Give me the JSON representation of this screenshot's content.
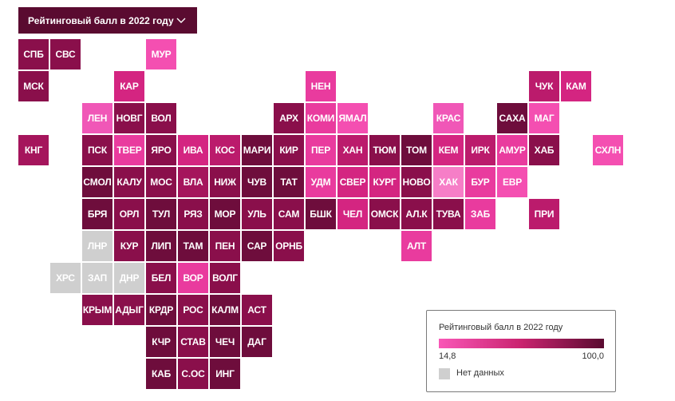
{
  "dropdown": {
    "label": "Рейтинговый балл в 2022 году"
  },
  "legend": {
    "title": "Рейтинговый балл в 2022 году",
    "min": "14,8",
    "max": "100,0",
    "no_data": "Нет данных",
    "colors": {
      "low": "#f957b7",
      "mid": "#c9236f",
      "high": "#5a0b30",
      "no_data": "#cfcfcf"
    }
  },
  "regions": [
    {
      "code": "СПБ",
      "col": 0,
      "row": 0,
      "color": "#8a0f4b"
    },
    {
      "code": "СВС",
      "col": 1,
      "row": 0,
      "color": "#8a0f4b"
    },
    {
      "code": "МУР",
      "col": 4,
      "row": 0,
      "color": "#f44fb1"
    },
    {
      "code": "МСК",
      "col": 0,
      "row": 1,
      "color": "#8a0f4b"
    },
    {
      "code": "КАР",
      "col": 3,
      "row": 1,
      "color": "#d42581"
    },
    {
      "code": "НЕН",
      "col": 9,
      "row": 1,
      "color": "#e93b9e"
    },
    {
      "code": "ЧУК",
      "col": 16,
      "row": 1,
      "color": "#bb1b6c"
    },
    {
      "code": "КАМ",
      "col": 17,
      "row": 1,
      "color": "#d42581"
    },
    {
      "code": "ЛЕН",
      "col": 2,
      "row": 2,
      "color": "#f057b7"
    },
    {
      "code": "НОВГ",
      "col": 3,
      "row": 2,
      "color": "#8a0f4b"
    },
    {
      "code": "ВОЛ",
      "col": 4,
      "row": 2,
      "color": "#8a0f4b"
    },
    {
      "code": "АРХ",
      "col": 8,
      "row": 2,
      "color": "#8a0f4b"
    },
    {
      "code": "КОМИ",
      "col": 9,
      "row": 2,
      "color": "#e93b9e"
    },
    {
      "code": "ЯМАЛ",
      "col": 10,
      "row": 2,
      "color": "#f44fb1"
    },
    {
      "code": "КРАС",
      "col": 13,
      "row": 2,
      "color": "#f057b7"
    },
    {
      "code": "САХА",
      "col": 15,
      "row": 2,
      "color": "#6e0d3c"
    },
    {
      "code": "МАГ",
      "col": 16,
      "row": 2,
      "color": "#f44fb1"
    },
    {
      "code": "КНГ",
      "col": 0,
      "row": 3,
      "color": "#a5155c"
    },
    {
      "code": "ПСК",
      "col": 2,
      "row": 3,
      "color": "#8a0f4b"
    },
    {
      "code": "ТВЕР",
      "col": 3,
      "row": 3,
      "color": "#e93b9e"
    },
    {
      "code": "ЯРО",
      "col": 4,
      "row": 3,
      "color": "#8a0f4b"
    },
    {
      "code": "ИВА",
      "col": 5,
      "row": 3,
      "color": "#d42581"
    },
    {
      "code": "КОС",
      "col": 6,
      "row": 3,
      "color": "#bb1b6c"
    },
    {
      "code": "МАРИ",
      "col": 7,
      "row": 3,
      "color": "#6e0d3c"
    },
    {
      "code": "КИР",
      "col": 8,
      "row": 3,
      "color": "#8a0f4b"
    },
    {
      "code": "ПЕР",
      "col": 9,
      "row": 3,
      "color": "#e93b9e"
    },
    {
      "code": "ХАН",
      "col": 10,
      "row": 3,
      "color": "#bb1b6c"
    },
    {
      "code": "ТЮМ",
      "col": 11,
      "row": 3,
      "color": "#8a0f4b"
    },
    {
      "code": "ТОМ",
      "col": 12,
      "row": 3,
      "color": "#6e0d3c"
    },
    {
      "code": "КЕМ",
      "col": 13,
      "row": 3,
      "color": "#d42581"
    },
    {
      "code": "ИРК",
      "col": 14,
      "row": 3,
      "color": "#bb1b6c"
    },
    {
      "code": "АМУР",
      "col": 15,
      "row": 3,
      "color": "#e93b9e"
    },
    {
      "code": "ХАБ",
      "col": 16,
      "row": 3,
      "color": "#8a0f4b"
    },
    {
      "code": "СХЛН",
      "col": 18,
      "row": 3,
      "color": "#f44fb1"
    },
    {
      "code": "СМОЛ",
      "col": 2,
      "row": 4,
      "color": "#6e0d3c"
    },
    {
      "code": "КАЛУ",
      "col": 3,
      "row": 4,
      "color": "#8a0f4b"
    },
    {
      "code": "МОС",
      "col": 4,
      "row": 4,
      "color": "#8a0f4b"
    },
    {
      "code": "ВЛА",
      "col": 5,
      "row": 4,
      "color": "#a5155c"
    },
    {
      "code": "НИЖ",
      "col": 6,
      "row": 4,
      "color": "#8a0f4b"
    },
    {
      "code": "ЧУВ",
      "col": 7,
      "row": 4,
      "color": "#6e0d3c"
    },
    {
      "code": "ТАТ",
      "col": 8,
      "row": 4,
      "color": "#6e0d3c"
    },
    {
      "code": "УДМ",
      "col": 9,
      "row": 4,
      "color": "#e93b9e"
    },
    {
      "code": "СВЕР",
      "col": 10,
      "row": 4,
      "color": "#d42581"
    },
    {
      "code": "КУРГ",
      "col": 11,
      "row": 4,
      "color": "#d42581"
    },
    {
      "code": "НОВО",
      "col": 12,
      "row": 4,
      "color": "#8a0f4b"
    },
    {
      "code": "ХАК",
      "col": 13,
      "row": 4,
      "color": "#f67ec7"
    },
    {
      "code": "БУР",
      "col": 14,
      "row": 4,
      "color": "#e93b9e"
    },
    {
      "code": "ЕВР",
      "col": 15,
      "row": 4,
      "color": "#f44fb1"
    },
    {
      "code": "БРЯ",
      "col": 2,
      "row": 5,
      "color": "#6e0d3c"
    },
    {
      "code": "ОРЛ",
      "col": 3,
      "row": 5,
      "color": "#8a0f4b"
    },
    {
      "code": "ТУЛ",
      "col": 4,
      "row": 5,
      "color": "#6e0d3c"
    },
    {
      "code": "РЯЗ",
      "col": 5,
      "row": 5,
      "color": "#8a0f4b"
    },
    {
      "code": "МОР",
      "col": 6,
      "row": 5,
      "color": "#6e0d3c"
    },
    {
      "code": "УЛЬ",
      "col": 7,
      "row": 5,
      "color": "#8a0f4b"
    },
    {
      "code": "САМ",
      "col": 8,
      "row": 5,
      "color": "#8a0f4b"
    },
    {
      "code": "БШК",
      "col": 9,
      "row": 5,
      "color": "#6e0d3c"
    },
    {
      "code": "ЧЕЛ",
      "col": 10,
      "row": 5,
      "color": "#d42581"
    },
    {
      "code": "ОМСК",
      "col": 11,
      "row": 5,
      "color": "#8a0f4b"
    },
    {
      "code": "АЛ.К",
      "col": 12,
      "row": 5,
      "color": "#8a0f4b"
    },
    {
      "code": "ТУВА",
      "col": 13,
      "row": 5,
      "color": "#8a0f4b"
    },
    {
      "code": "ЗАБ",
      "col": 14,
      "row": 5,
      "color": "#e93b9e"
    },
    {
      "code": "ПРИ",
      "col": 16,
      "row": 5,
      "color": "#bb1b6c"
    },
    {
      "code": "ЛНР",
      "col": 2,
      "row": 6,
      "color": "#cfcfcf"
    },
    {
      "code": "КУР",
      "col": 3,
      "row": 6,
      "color": "#8a0f4b"
    },
    {
      "code": "ЛИП",
      "col": 4,
      "row": 6,
      "color": "#6e0d3c"
    },
    {
      "code": "ТАМ",
      "col": 5,
      "row": 6,
      "color": "#6e0d3c"
    },
    {
      "code": "ПЕН",
      "col": 6,
      "row": 6,
      "color": "#8a0f4b"
    },
    {
      "code": "САР",
      "col": 7,
      "row": 6,
      "color": "#6e0d3c"
    },
    {
      "code": "ОРНБ",
      "col": 8,
      "row": 6,
      "color": "#8a0f4b"
    },
    {
      "code": "АЛТ",
      "col": 12,
      "row": 6,
      "color": "#e93b9e"
    },
    {
      "code": "ХРС",
      "col": 1,
      "row": 7,
      "color": "#cfcfcf"
    },
    {
      "code": "ЗАП",
      "col": 2,
      "row": 7,
      "color": "#cfcfcf"
    },
    {
      "code": "ДНР",
      "col": 3,
      "row": 7,
      "color": "#cfcfcf"
    },
    {
      "code": "БЕЛ",
      "col": 4,
      "row": 7,
      "color": "#8a0f4b"
    },
    {
      "code": "ВОР",
      "col": 5,
      "row": 7,
      "color": "#e93b9e"
    },
    {
      "code": "ВОЛГ",
      "col": 6,
      "row": 7,
      "color": "#8a0f4b"
    },
    {
      "code": "КРЫМ",
      "col": 2,
      "row": 8,
      "color": "#8a0f4b"
    },
    {
      "code": "АДЫГ",
      "col": 3,
      "row": 8,
      "color": "#8a0f4b"
    },
    {
      "code": "КРДР",
      "col": 4,
      "row": 8,
      "color": "#6e0d3c"
    },
    {
      "code": "РОС",
      "col": 5,
      "row": 8,
      "color": "#8a0f4b"
    },
    {
      "code": "КАЛМ",
      "col": 6,
      "row": 8,
      "color": "#6e0d3c"
    },
    {
      "code": "АСТ",
      "col": 7,
      "row": 8,
      "color": "#8a0f4b"
    },
    {
      "code": "КЧР",
      "col": 4,
      "row": 9,
      "color": "#6e0d3c"
    },
    {
      "code": "СТАВ",
      "col": 5,
      "row": 9,
      "color": "#8a0f4b"
    },
    {
      "code": "ЧЕЧ",
      "col": 6,
      "row": 9,
      "color": "#6e0d3c"
    },
    {
      "code": "ДАГ",
      "col": 7,
      "row": 9,
      "color": "#6e0d3c"
    },
    {
      "code": "КАБ",
      "col": 4,
      "row": 10,
      "color": "#6e0d3c"
    },
    {
      "code": "С.ОС",
      "col": 5,
      "row": 10,
      "color": "#8a0f4b"
    },
    {
      "code": "ИНГ",
      "col": 6,
      "row": 10,
      "color": "#6e0d3c"
    }
  ]
}
